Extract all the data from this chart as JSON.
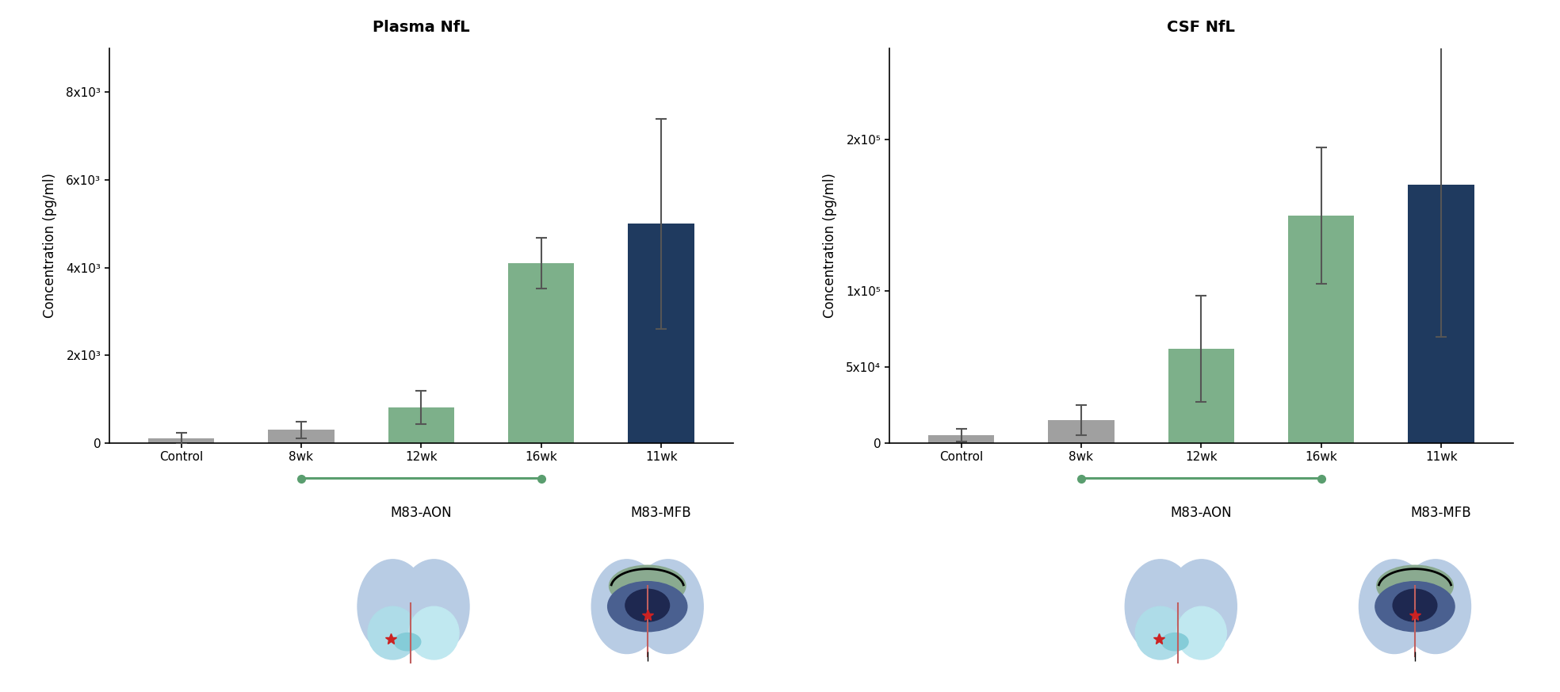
{
  "plasma": {
    "title": "Plasma NfL",
    "categories": [
      "Control",
      "8wk",
      "12wk",
      "16wk",
      "11wk"
    ],
    "values": [
      100,
      300,
      800,
      4100,
      5000
    ],
    "errors": [
      130,
      190,
      380,
      580,
      2400
    ],
    "bar_colors": [
      "#a0a0a0",
      "#a0a0a0",
      "#7db08a",
      "#7db08a",
      "#1f3a5f"
    ],
    "ylabel": "Concentration (pg/ml)",
    "ylim": [
      0,
      9000
    ],
    "yticks": [
      0,
      2000,
      4000,
      6000,
      8000
    ],
    "ytick_labels": [
      "0",
      "2x10³",
      "4x10³",
      "6x10³",
      "8x10³"
    ]
  },
  "csf": {
    "title": "CSF NfL",
    "categories": [
      "Control",
      "8wk",
      "12wk",
      "16wk",
      "11wk"
    ],
    "values": [
      5000,
      15000,
      62000,
      150000,
      170000
    ],
    "errors": [
      4000,
      10000,
      35000,
      45000,
      100000
    ],
    "bar_colors": [
      "#a0a0a0",
      "#a0a0a0",
      "#7db08a",
      "#7db08a",
      "#1f3a5f"
    ],
    "ylabel": "Concentration (pg/ml)",
    "ylim": [
      0,
      260000
    ],
    "yticks": [
      0,
      50000,
      100000,
      200000
    ],
    "ytick_labels": [
      "0",
      "5x10⁴",
      "1x10⁵",
      "2x10⁵"
    ]
  },
  "bracket_color": "#5a9e6f",
  "label_aon": "M83-AON",
  "label_mfb": "M83-MFB",
  "background_color": "#ffffff",
  "title_fontsize": 14,
  "tick_fontsize": 11,
  "label_fontsize": 12,
  "bar_width": 0.55,
  "error_color": "#555555",
  "error_capsize": 5,
  "error_linewidth": 1.5
}
